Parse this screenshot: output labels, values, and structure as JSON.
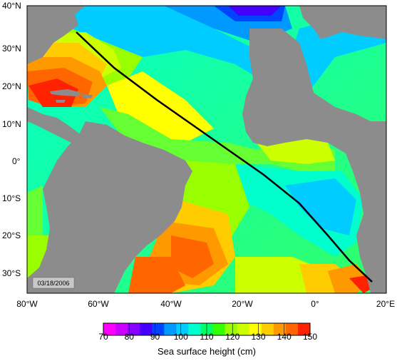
{
  "map": {
    "date_label": "03/18/2006",
    "lat_labels": [
      "40°N",
      "30°N",
      "20°N",
      "10°N",
      "0°",
      "10°S",
      "20°S",
      "30°S"
    ],
    "lon_labels": [
      "80°W",
      "60°W",
      "40°W",
      "20°W",
      "0°",
      "20°E"
    ]
  },
  "legend": {
    "title": "Sea surface height (cm)",
    "ticks": [
      "70",
      "80",
      "90",
      "100",
      "110",
      "120",
      "130",
      "140",
      "150"
    ],
    "colors": [
      "#ff00ff",
      "#cc00ff",
      "#8800ff",
      "#4400ff",
      "#0044ff",
      "#0099ff",
      "#00ccff",
      "#00ffcc",
      "#00ff66",
      "#33ff00",
      "#99ff00",
      "#ccff00",
      "#ffff00",
      "#ffcc00",
      "#ff9900",
      "#ff6600",
      "#ff2200"
    ]
  },
  "colors": {
    "land": "#8c8c8c",
    "shelf": "#a8a8a8",
    "track": "#000000"
  }
}
